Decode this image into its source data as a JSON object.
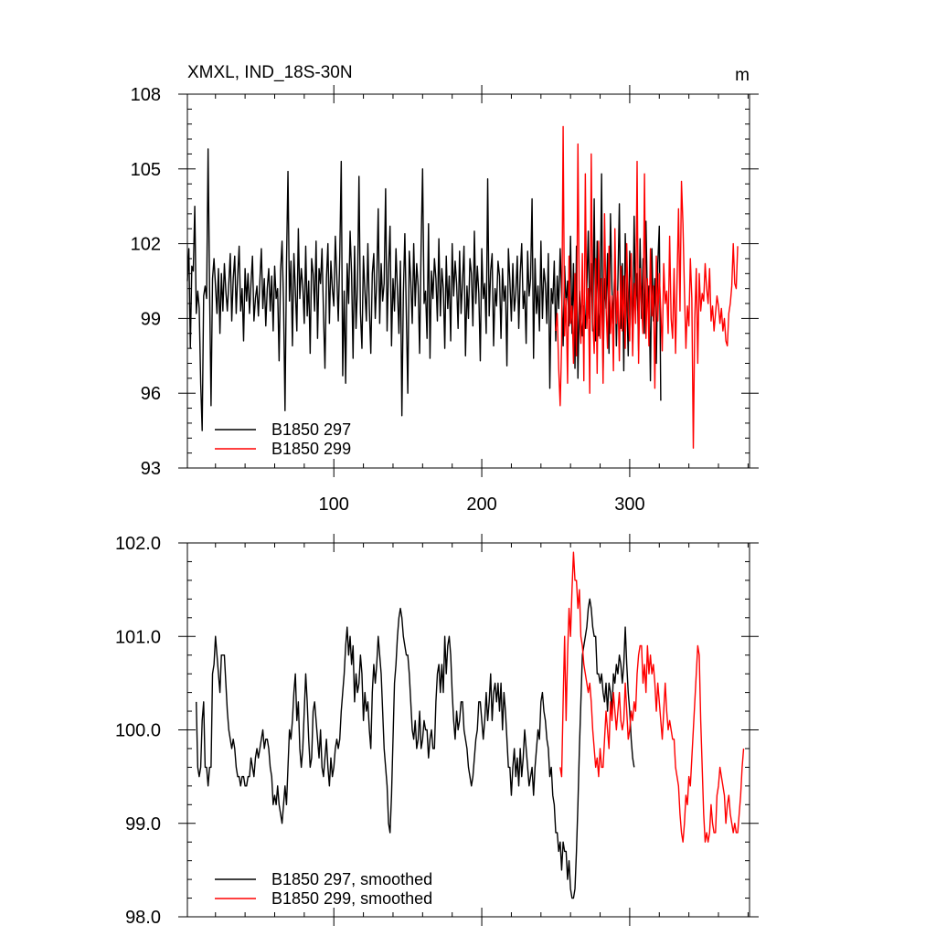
{
  "chart_data": [
    {
      "type": "line",
      "title": "XMXL, IND_18S-30N",
      "units": "m",
      "xlim": [
        1,
        381
      ],
      "ylim": [
        93,
        108
      ],
      "xticks": [
        100,
        200,
        300
      ],
      "yticks": [
        93,
        96,
        99,
        102,
        105,
        108
      ],
      "grid": false,
      "legend_placement": "bottom-left",
      "series": [
        {
          "name": "B1850 297",
          "color": "#000000",
          "x_start": 1,
          "values": [
            100.5,
            101.8,
            97.8,
            101.1,
            100.9,
            103.5,
            99.2,
            100.1,
            99.4,
            96.4,
            94.5,
            99.9,
            100.3,
            99.8,
            105.8,
            100.2,
            95.5,
            100.6,
            101.4,
            100.3,
            99.2,
            101.0,
            98.4,
            100.8,
            99.3,
            101.2,
            100.1,
            99.3,
            100.4,
            101.6,
            98.9,
            100.6,
            101.5,
            99.2,
            100.7,
            101.9,
            99.3,
            100.2,
            98.1,
            101.0,
            99.7,
            100.8,
            99.2,
            100.4,
            101.5,
            98.9,
            99.8,
            100.3,
            99.1,
            100.5,
            101.8,
            99.4,
            100.6,
            98.7,
            100.2,
            101.0,
            99.3,
            100.7,
            98.5,
            101.1,
            99.8,
            100.2,
            97.3,
            100.9,
            102.1,
            99.6,
            95.3,
            101.2,
            104.9,
            99.7,
            101.3,
            97.9,
            101.6,
            100.1,
            98.5,
            102.6,
            99.8,
            101.0,
            100.3,
            98.8,
            101.9,
            99.1,
            100.5,
            97.6,
            101.4,
            100.8,
            99.3,
            102.1,
            98.2,
            101.0,
            100.4,
            101.8,
            99.2,
            97.0,
            100.6,
            102.0,
            98.8,
            101.3,
            100.2,
            99.5,
            102.3,
            100.7,
            98.9,
            101.5,
            105.3,
            96.7,
            100.1,
            96.4,
            101.2,
            99.6,
            102.5,
            100.8,
            97.4,
            101.9,
            98.6,
            100.3,
            104.7,
            99.2,
            97.8,
            101.5,
            100.1,
            98.9,
            102.0,
            99.4,
            97.6,
            100.8,
            101.6,
            99.0,
            100.5,
            103.4,
            98.8,
            101.2,
            99.7,
            100.4,
            104.2,
            98.5,
            101.0,
            102.7,
            97.9,
            100.6,
            99.3,
            101.8,
            100.1,
            98.4,
            101.3,
            95.1,
            100.0,
            102.4,
            99.2,
            96.0,
            101.7,
            100.5,
            98.8,
            102.0,
            99.5,
            101.2,
            100.3,
            97.6,
            101.9,
            105.0,
            99.6,
            100.1,
            98.2,
            102.8,
            97.4,
            100.9,
            99.8,
            101.4,
            100.6,
            98.9,
            102.2,
            99.1,
            101.0,
            100.2,
            97.8,
            101.5,
            99.4,
            100.7,
            98.1,
            102.0,
            99.9,
            101.3,
            100.4,
            98.6,
            101.7,
            99.2,
            100.5,
            101.9,
            97.5,
            100.3,
            99.0,
            101.4,
            100.8,
            98.7,
            102.5,
            99.6,
            101.1,
            100.0,
            97.3,
            101.8,
            99.8,
            100.4,
            98.4,
            104.6,
            99.1,
            100.9,
            101.6,
            97.9,
            100.2,
            99.5,
            101.3,
            100.7,
            98.2,
            101.0,
            99.7,
            100.3,
            97.1,
            101.8,
            100.5,
            98.9,
            101.2,
            99.3,
            100.0,
            101.5,
            98.6,
            100.8,
            102.0,
            99.4,
            100.1,
            98.0,
            101.7,
            99.9,
            100.6,
            103.8,
            97.4,
            101.4,
            99.2,
            100.3,
            98.5,
            102.1,
            99.0,
            101.0,
            100.4,
            98.8,
            101.6,
            96.2,
            100.2,
            99.6,
            101.3,
            98.1,
            100.7,
            99.4,
            101.8,
            100.0,
            97.9,
            101.1,
            99.5,
            100.5,
            98.7,
            102.3,
            98.4,
            101.2,
            97.0,
            101.9,
            96.6,
            100.1,
            99.0,
            98.3,
            99.5,
            98.6,
            100.2,
            102.5,
            99.0,
            101.2,
            98.5,
            103.8,
            98.1,
            102.1,
            98.3,
            99.5,
            104.8,
            96.8,
            100.6,
            99.4,
            101.6,
            97.6,
            103.2,
            100.2,
            98.8,
            101.5,
            97.9,
            100.4,
            103.6,
            98.6,
            101.2,
            96.9,
            102.4,
            99.8,
            97.5,
            101.7,
            100.1,
            98.0,
            103.1,
            99.3,
            100.8,
            97.7,
            102.2,
            99.0,
            101.4,
            98.4,
            102.9,
            99.6,
            100.3,
            96.5,
            101.8,
            98.9,
            100.6,
            97.2,
            101.2,
            102.7,
            95.7
          ]
        },
        {
          "name": "B1850 299",
          "color": "#ff0000",
          "x_start": 250,
          "values": [
            98.5,
            99.2,
            97.0,
            95.5,
            98.0,
            106.7,
            98.3,
            99.8,
            96.4,
            101.5,
            98.8,
            99.5,
            97.2,
            100.8,
            97.5,
            106.0,
            99.3,
            98.0,
            101.6,
            96.5,
            104.8,
            98.6,
            100.2,
            96.0,
            105.6,
            99.1,
            97.6,
            101.4,
            96.8,
            102.1,
            98.2,
            100.6,
            96.4,
            103.2,
            99.5,
            97.8,
            101.9,
            98.4,
            99.9,
            96.9,
            102.6,
            98.8,
            100.1,
            97.3,
            101.1,
            98.5,
            100.7,
            97.8,
            102.0,
            99.2,
            98.1,
            101.6,
            97.5,
            100.4,
            98.8,
            105.3,
            97.2,
            101.0,
            99.5,
            98.4,
            104.8,
            98.2,
            100.6,
            97.9,
            101.8,
            99.1,
            100.3,
            96.2,
            101.5,
            98.9,
            100.8,
            99.3,
            97.7,
            101.2,
            99.6,
            100.1,
            98.4,
            102.3,
            99.0,
            98.2,
            101.0,
            97.6,
            100.5,
            103.4,
            99.3,
            104.5,
            102.8,
            100.1,
            97.8,
            99.5,
            98.7,
            101.4,
            99.8,
            93.8,
            99.0,
            101.0,
            97.2,
            100.8,
            99.3,
            100.0,
            99.7,
            101.2,
            100.2,
            99.6,
            101.0,
            98.9,
            99.5,
            98.5,
            99.2,
            99.9,
            99.5,
            98.8,
            99.4,
            98.5,
            99.0,
            98.1,
            97.9,
            99.2,
            99.6,
            100.3,
            102.0,
            100.4,
            100.2,
            101.9
          ]
        }
      ]
    },
    {
      "type": "line",
      "ylim": [
        98.0,
        102.0
      ],
      "xlim": [
        1,
        381
      ],
      "yticks": [
        98.0,
        99.0,
        100.0,
        101.0,
        102.0
      ],
      "grid": false,
      "legend_placement": "bottom-left",
      "series": [
        {
          "name": "B1850 297, smoothed",
          "color": "#000000",
          "x_start": 7,
          "values": [
            100.3,
            99.6,
            99.5,
            99.6,
            100.1,
            100.3,
            99.6,
            99.6,
            99.4,
            99.6,
            99.6,
            100.6,
            100.7,
            101.0,
            100.8,
            100.6,
            100.4,
            100.8,
            100.8,
            100.8,
            100.5,
            100.2,
            100.0,
            99.9,
            99.8,
            99.9,
            99.8,
            99.6,
            99.5,
            99.5,
            99.4,
            99.5,
            99.5,
            99.4,
            99.4,
            99.5,
            99.5,
            99.7,
            99.6,
            99.5,
            99.7,
            99.8,
            99.7,
            99.8,
            99.9,
            100.0,
            99.8,
            99.9,
            99.9,
            99.8,
            99.6,
            99.5,
            99.2,
            99.3,
            99.2,
            99.4,
            99.2,
            99.1,
            99.0,
            99.2,
            99.4,
            99.2,
            99.6,
            100.0,
            99.9,
            100.1,
            100.4,
            100.6,
            100.1,
            100.3,
            99.8,
            99.6,
            99.8,
            100.2,
            100.6,
            100.3,
            99.9,
            99.6,
            99.7,
            100.2,
            100.3,
            100.1,
            99.9,
            99.7,
            100.0,
            99.6,
            99.5,
            99.7,
            99.9,
            99.6,
            99.4,
            99.7,
            99.5,
            99.6,
            99.8,
            99.9,
            99.8,
            99.9,
            100.2,
            100.4,
            100.6,
            100.9,
            101.1,
            100.8,
            101.0,
            100.7,
            100.9,
            100.3,
            100.6,
            100.4,
            100.5,
            100.8,
            100.6,
            100.1,
            100.4,
            100.2,
            100.3,
            100.0,
            99.8,
            100.4,
            100.7,
            100.5,
            100.7,
            101.0,
            100.8,
            100.6,
            100.2,
            99.8,
            99.6,
            99.4,
            99.0,
            98.9,
            99.3,
            99.9,
            100.5,
            100.7,
            101.0,
            101.2,
            101.3,
            101.2,
            101.0,
            100.9,
            100.8,
            100.8,
            100.6,
            100.3,
            100.0,
            99.9,
            100.1,
            99.8,
            99.9,
            100.2,
            99.8,
            99.9,
            100.1,
            100.0,
            100.0,
            99.7,
            99.9,
            100.0,
            99.8,
            99.8,
            100.3,
            100.6,
            100.7,
            100.4,
            100.7,
            100.4,
            101.0,
            100.6,
            100.9,
            101.0,
            100.8,
            100.4,
            100.1,
            99.9,
            100.2,
            100.0,
            100.1,
            100.3,
            100.3,
            100.0,
            99.9,
            99.8,
            99.6,
            99.5,
            99.4,
            99.5,
            99.7,
            99.9,
            100.0,
            100.3,
            100.3,
            100.1,
            99.9,
            100.1,
            100.4,
            100.1,
            100.3,
            100.6,
            100.1,
            100.4,
            100.5,
            100.3,
            100.5,
            100.2,
            100.5,
            100.0,
            100.4,
            100.2,
            99.9,
            99.6,
            99.6,
            99.3,
            99.6,
            99.8,
            99.5,
            99.7,
            99.4,
            99.8,
            99.5,
            99.7,
            100.0,
            99.8,
            99.6,
            99.4,
            99.5,
            99.6,
            99.3,
            99.6,
            99.8,
            100.0,
            99.9,
            100.3,
            100.4,
            100.2,
            100.1,
            99.9,
            99.8,
            99.5,
            99.6,
            99.3,
            99.2,
            98.9,
            98.9,
            98.7,
            98.8,
            98.5,
            98.8,
            98.7,
            98.7,
            98.4,
            98.6,
            98.3,
            98.2,
            98.2,
            98.3,
            98.7,
            99.2,
            99.8,
            100.3,
            100.8,
            100.9,
            101.0,
            101.1,
            101.3,
            101.4,
            101.3,
            101.1,
            101.0,
            101.0,
            100.6,
            100.6,
            100.5,
            100.6,
            100.4,
            100.3,
            100.5,
            100.2,
            100.5,
            100.4,
            100.2,
            100.6,
            100.5,
            100.7,
            100.6,
            100.8,
            100.7,
            100.5,
            100.7,
            101.1,
            100.7,
            100.4,
            100.2,
            99.9,
            99.7,
            99.6
          ]
        },
        {
          "name": "B1850 299, smoothed",
          "color": "#ff0000",
          "x_start": 253,
          "values": [
            99.6,
            99.5,
            100.3,
            101.0,
            100.1,
            100.8,
            101.3,
            101.0,
            101.5,
            101.9,
            101.6,
            101.6,
            101.3,
            101.5,
            101.0,
            100.9,
            100.7,
            100.6,
            100.5,
            100.4,
            100.5,
            100.3,
            100.0,
            99.8,
            99.6,
            99.7,
            99.5,
            99.8,
            99.6,
            99.6,
            99.9,
            100.2,
            100.0,
            99.8,
            100.3,
            100.1,
            100.4,
            100.2,
            100.0,
            100.2,
            100.4,
            100.1,
            100.0,
            100.1,
            100.5,
            100.2,
            99.9,
            100.0,
            100.2,
            100.1,
            100.3,
            100.2,
            100.6,
            100.8,
            100.9,
            100.9,
            100.5,
            100.7,
            100.4,
            100.9,
            100.6,
            100.8,
            100.6,
            100.7,
            100.5,
            100.2,
            100.5,
            100.3,
            100.1,
            99.9,
            100.2,
            100.5,
            100.2,
            100.0,
            100.1,
            100.0,
            99.9,
            99.9,
            99.6,
            99.5,
            99.4,
            99.1,
            98.9,
            98.8,
            99.0,
            99.3,
            99.2,
            99.5,
            99.4,
            99.7,
            100.0,
            100.3,
            100.6,
            100.9,
            100.8,
            100.1,
            99.6,
            99.1,
            98.8,
            98.9,
            98.8,
            98.9,
            99.2,
            99.0,
            98.9,
            98.9,
            99.3,
            99.4,
            99.6,
            99.5,
            99.4,
            99.3,
            99.0,
            99.2,
            99.3,
            99.1,
            99.0,
            98.9,
            99.0,
            98.9,
            98.9,
            99.1,
            99.3,
            99.6,
            99.8
          ]
        }
      ]
    }
  ]
}
